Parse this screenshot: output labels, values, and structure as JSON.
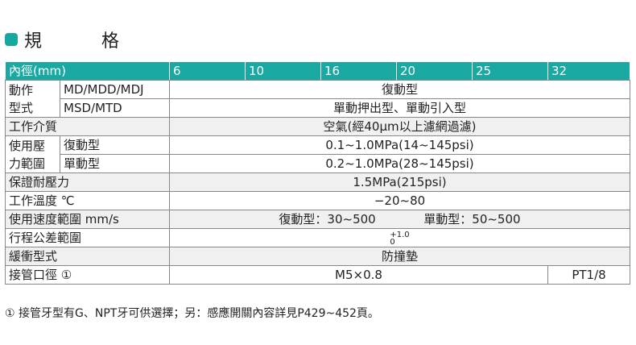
{
  "heading": {
    "title": "規　格"
  },
  "header": {
    "label": "內徑(mm)",
    "bores": [
      "6",
      "10",
      "16",
      "20",
      "25",
      "32"
    ]
  },
  "rows": {
    "action": {
      "group_label": "動作型式",
      "group_line1": "動作",
      "group_line2": "型式",
      "md_label": "MD/MDD/MDJ",
      "md_value": "復動型",
      "msd_label": "MSD/MTD",
      "msd_value": "單動押出型、單動引入型"
    },
    "medium": {
      "label": "工作介質",
      "value": "空氣(經40μm以上濾網過濾)"
    },
    "pressure": {
      "group_line1": "使用壓",
      "group_line2": "力範圍",
      "double_label": "復動型",
      "double_value": "0.1~1.0MPa(14~145psi)",
      "single_label": "單動型",
      "single_value": "0.2~1.0MPa(28~145psi)"
    },
    "proof": {
      "label": "保證耐壓力",
      "value": "1.5MPa(215psi)"
    },
    "temp": {
      "label": "工作溫度 ℃",
      "value": "−20~80"
    },
    "speed": {
      "label": "使用速度範圍 mm/s",
      "double": "復動型：30~500",
      "single": "單動型：50~500"
    },
    "stroke": {
      "label": "行程公差範圍",
      "upper": "+1.0",
      "lower": "0"
    },
    "cushion": {
      "label": "緩衝型式",
      "value": "防撞墊"
    },
    "port": {
      "label": "接管口徑 ①",
      "value_small": "M5×0.8",
      "value_32": "PT1/8"
    }
  },
  "footnote": "① 接管牙型有G、NPT牙可供選擇；另：感應開關內容詳見P429~452頁。",
  "colors": {
    "accent": "#19a8a2",
    "shade": "#f0f0f0"
  }
}
